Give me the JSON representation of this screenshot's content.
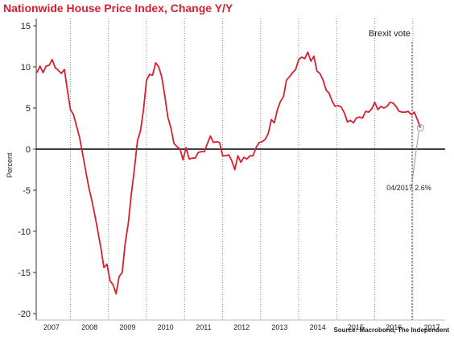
{
  "colors": {
    "title": "#d6202f",
    "line": "#d6202f",
    "zero_line": "#000000",
    "vgrid": "#888888",
    "text": "#222222",
    "marker": "#999999"
  },
  "chart_data": {
    "type": "line",
    "title": "Nationwide House Price Index, Change Y/Y",
    "source": "Source: Macrobond, The Independent",
    "xlabel": "",
    "ylabel": "Percent",
    "xlim": [
      2006.6,
      2017.35
    ],
    "ylim": [
      -20,
      15
    ],
    "yticks": [
      15,
      10,
      5,
      0,
      -5,
      -10,
      -15,
      -20
    ],
    "xtick_labels": [
      "2007",
      "2008",
      "2009",
      "2010",
      "2011",
      "2012",
      "2013",
      "2014",
      "2015",
      "2016",
      "2017"
    ],
    "year_dividers": [
      2007.5,
      2008.5,
      2009.5,
      2010.5,
      2011.5,
      2012.5,
      2013.5,
      2014.5,
      2015.5,
      2016.5
    ],
    "annotations": [
      {
        "text": "Brexit vote",
        "x": 2016.48
      },
      {
        "text": "04/2017 2.6%",
        "x": 2017.25,
        "y": 2.6
      }
    ],
    "grid": false,
    "series": [
      {
        "values": [
          [
            2006.62,
            9.3
          ],
          [
            2006.7,
            10.1
          ],
          [
            2006.78,
            9.3
          ],
          [
            2006.86,
            10.1
          ],
          [
            2006.94,
            10.2
          ],
          [
            2007.02,
            10.9
          ],
          [
            2007.1,
            9.9
          ],
          [
            2007.18,
            9.6
          ],
          [
            2007.26,
            9.2
          ],
          [
            2007.34,
            9.7
          ],
          [
            2007.42,
            7.2
          ],
          [
            2007.5,
            4.8
          ],
          [
            2007.58,
            4.2
          ],
          [
            2007.66,
            2.8
          ],
          [
            2007.74,
            1.4
          ],
          [
            2007.82,
            -0.6
          ],
          [
            2007.9,
            -2.6
          ],
          [
            2007.98,
            -4.6
          ],
          [
            2008.06,
            -6.2
          ],
          [
            2008.14,
            -8.0
          ],
          [
            2008.22,
            -10.0
          ],
          [
            2008.3,
            -12.0
          ],
          [
            2008.38,
            -14.4
          ],
          [
            2008.46,
            -14.0
          ],
          [
            2008.54,
            -16.0
          ],
          [
            2008.62,
            -16.5
          ],
          [
            2008.7,
            -17.6
          ],
          [
            2008.78,
            -15.5
          ],
          [
            2008.86,
            -15.0
          ],
          [
            2008.94,
            -11.4
          ],
          [
            2009.02,
            -9.0
          ],
          [
            2009.1,
            -5.5
          ],
          [
            2009.18,
            -2.5
          ],
          [
            2009.26,
            1.0
          ],
          [
            2009.34,
            2.2
          ],
          [
            2009.42,
            4.8
          ],
          [
            2009.5,
            8.4
          ],
          [
            2009.58,
            9.1
          ],
          [
            2009.66,
            9.0
          ],
          [
            2009.74,
            10.5
          ],
          [
            2009.82,
            10.0
          ],
          [
            2009.9,
            8.8
          ],
          [
            2009.98,
            6.5
          ],
          [
            2010.06,
            3.9
          ],
          [
            2010.14,
            2.6
          ],
          [
            2010.22,
            0.7
          ],
          [
            2010.3,
            0.3
          ],
          [
            2010.38,
            0.0
          ],
          [
            2010.46,
            -1.3
          ],
          [
            2010.54,
            0.2
          ],
          [
            2010.62,
            -1.2
          ],
          [
            2010.7,
            -1.1
          ],
          [
            2010.78,
            -1.1
          ],
          [
            2010.86,
            -0.4
          ],
          [
            2010.94,
            -0.3
          ],
          [
            2011.02,
            -0.3
          ],
          [
            2011.1,
            0.7
          ],
          [
            2011.18,
            1.6
          ],
          [
            2011.26,
            0.8
          ],
          [
            2011.34,
            0.9
          ],
          [
            2011.42,
            0.8
          ],
          [
            2011.5,
            -0.8
          ],
          [
            2011.58,
            -0.8
          ],
          [
            2011.66,
            -0.7
          ],
          [
            2011.74,
            -1.4
          ],
          [
            2011.82,
            -2.5
          ],
          [
            2011.9,
            -0.8
          ],
          [
            2011.98,
            -1.6
          ],
          [
            2012.06,
            -1.0
          ],
          [
            2012.14,
            -1.2
          ],
          [
            2012.22,
            -0.8
          ],
          [
            2012.3,
            -0.8
          ],
          [
            2012.38,
            0.2
          ],
          [
            2012.46,
            0.8
          ],
          [
            2012.54,
            0.9
          ],
          [
            2012.62,
            1.2
          ],
          [
            2012.7,
            1.9
          ],
          [
            2012.78,
            3.6
          ],
          [
            2012.86,
            3.2
          ],
          [
            2012.94,
            4.8
          ],
          [
            2013.02,
            5.8
          ],
          [
            2013.1,
            6.4
          ],
          [
            2013.18,
            8.4
          ],
          [
            2013.26,
            8.8
          ],
          [
            2013.34,
            9.3
          ],
          [
            2013.42,
            9.7
          ],
          [
            2013.5,
            10.9
          ],
          [
            2013.58,
            11.2
          ],
          [
            2013.66,
            11.0
          ],
          [
            2013.74,
            11.8
          ],
          [
            2013.82,
            10.7
          ],
          [
            2013.9,
            11.3
          ],
          [
            2013.98,
            9.5
          ],
          [
            2014.06,
            9.2
          ],
          [
            2014.14,
            8.4
          ],
          [
            2014.22,
            7.2
          ],
          [
            2014.3,
            6.8
          ],
          [
            2014.38,
            5.8
          ],
          [
            2014.46,
            5.2
          ],
          [
            2014.54,
            5.3
          ],
          [
            2014.62,
            5.1
          ],
          [
            2014.7,
            4.4
          ],
          [
            2014.78,
            3.3
          ],
          [
            2014.86,
            3.5
          ],
          [
            2014.94,
            3.2
          ],
          [
            2015.02,
            3.8
          ],
          [
            2015.1,
            3.9
          ],
          [
            2015.18,
            3.8
          ],
          [
            2015.26,
            4.6
          ],
          [
            2015.34,
            4.5
          ],
          [
            2015.42,
            4.9
          ],
          [
            2015.5,
            5.7
          ],
          [
            2015.58,
            4.8
          ],
          [
            2015.66,
            5.2
          ],
          [
            2015.74,
            5.0
          ],
          [
            2015.82,
            5.2
          ],
          [
            2015.9,
            5.7
          ],
          [
            2015.98,
            5.6
          ],
          [
            2016.06,
            5.2
          ],
          [
            2016.14,
            4.6
          ],
          [
            2016.22,
            4.5
          ],
          [
            2016.3,
            4.5
          ],
          [
            2016.38,
            4.6
          ],
          [
            2016.46,
            4.2
          ],
          [
            2016.54,
            4.5
          ],
          [
            2016.62,
            3.6
          ],
          [
            2016.7,
            2.6
          ]
        ]
      }
    ]
  }
}
